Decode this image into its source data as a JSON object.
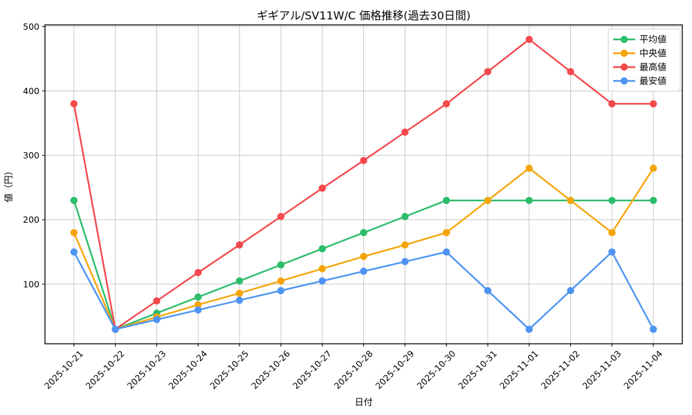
{
  "chart_data": {
    "type": "line",
    "title": "ギギアル/SV11W/C 価格推移(過去30日間)",
    "xlabel": "日付",
    "ylabel": "値（円）",
    "grid": true,
    "legend_position": "upper right",
    "ylim": [
      7.5,
      502.5
    ],
    "yticks": [
      100,
      200,
      300,
      400,
      500
    ],
    "categories": [
      "2025-10-21",
      "2025-10-22",
      "2025-10-23",
      "2025-10-24",
      "2025-10-25",
      "2025-10-26",
      "2025-10-27",
      "2025-10-28",
      "2025-10-29",
      "2025-10-30",
      "2025-10-31",
      "2025-11-01",
      "2025-11-02",
      "2025-11-03",
      "2025-11-04"
    ],
    "series": [
      {
        "name": "平均値",
        "id": "average-price",
        "color": "#2cbd6a",
        "values": [
          230,
          30,
          55,
          80,
          105,
          130,
          155,
          180,
          205,
          230,
          230,
          230,
          230,
          230,
          230
        ]
      },
      {
        "name": "中央値",
        "id": "median-price",
        "color": "#f5a50a",
        "values": [
          180,
          30,
          49,
          68,
          86,
          105,
          124,
          143,
          161,
          180,
          230,
          280,
          230,
          180,
          280
        ]
      },
      {
        "name": "最高値",
        "id": "highest-price",
        "color": "#f4494c",
        "values": [
          380,
          30,
          74,
          118,
          161,
          205,
          249,
          292,
          336,
          380,
          430,
          480,
          430,
          380,
          380
        ]
      },
      {
        "name": "最安値",
        "id": "lowest-price",
        "color": "#4d94f2",
        "values": [
          150,
          30,
          45,
          60,
          75,
          90,
          105,
          120,
          135,
          150,
          90,
          30,
          90,
          150,
          30
        ]
      }
    ],
    "colors": {
      "grid": "#c8c8c8",
      "spine": "#1a1a1a",
      "legend_border": "#cccccc",
      "background": "#ffffff"
    }
  }
}
